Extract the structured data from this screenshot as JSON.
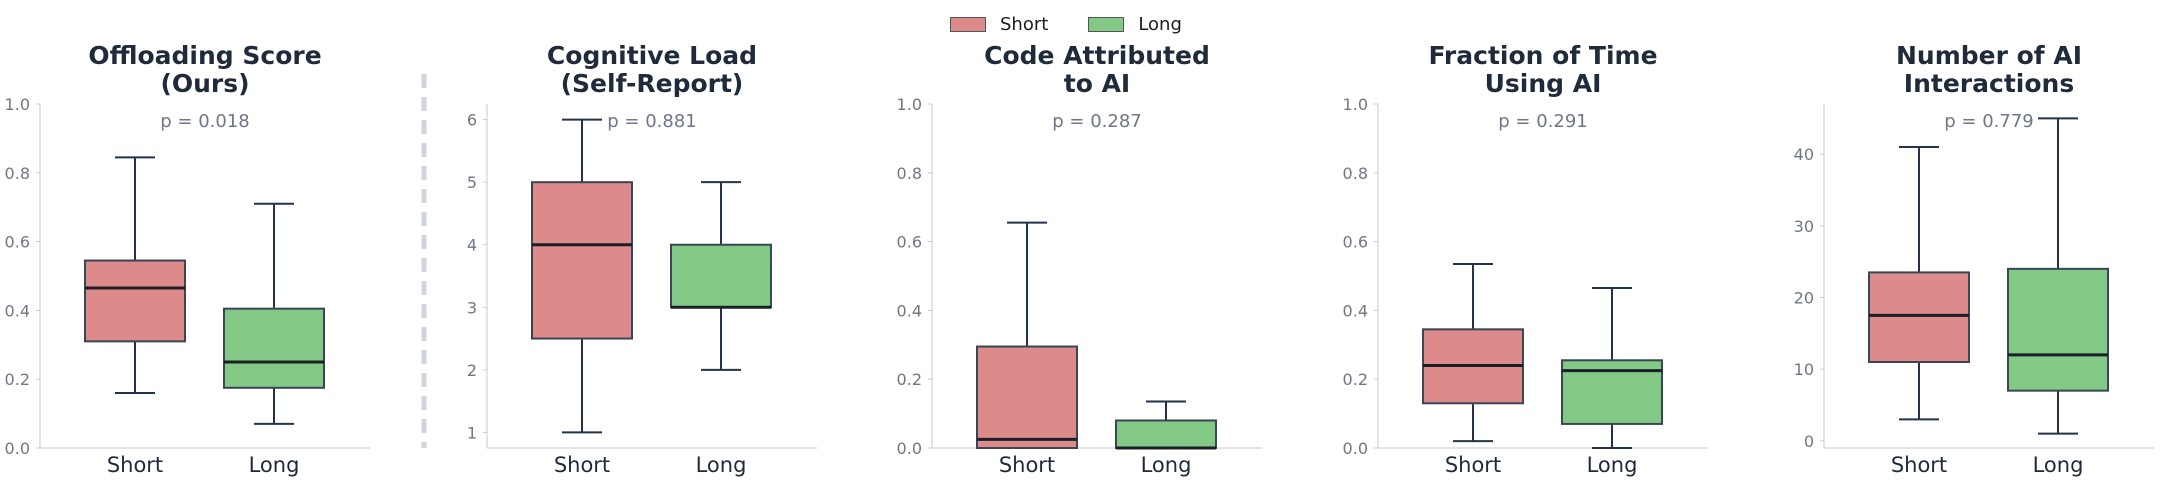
{
  "legend": {
    "items": [
      {
        "label": "Short",
        "color": "#dd8a8a"
      },
      {
        "label": "Long",
        "color": "#82c985"
      }
    ]
  },
  "divider_color": "#d0d4dc",
  "chart_data": [
    {
      "type": "box",
      "title": "Offloading Score\n(Ours)",
      "annotation": "p = 0.018",
      "categories": [
        "Short",
        "Long"
      ],
      "ylim": [
        0,
        1
      ],
      "yticks": [
        "0.0",
        "0.2",
        "0.4",
        "0.6",
        "0.8",
        "1.0"
      ],
      "ytick_values": [
        0,
        0.2,
        0.4,
        0.6,
        0.8,
        1.0
      ],
      "boxes": [
        {
          "name": "Short",
          "color": "#dd8a8a",
          "whisker_low": 0.16,
          "q1": 0.31,
          "median": 0.465,
          "q3": 0.545,
          "whisker_high": 0.845
        },
        {
          "name": "Long",
          "color": "#82c985",
          "whisker_low": 0.07,
          "q1": 0.175,
          "median": 0.25,
          "q3": 0.405,
          "whisker_high": 0.71
        }
      ]
    },
    {
      "type": "box",
      "title": "Cognitive Load\n(Self-Report)",
      "annotation": "p = 0.881",
      "categories": [
        "Short",
        "Long"
      ],
      "ylim": [
        0.75,
        6.25
      ],
      "yticks": [
        "1",
        "2",
        "3",
        "4",
        "5",
        "6"
      ],
      "ytick_values": [
        1,
        2,
        3,
        4,
        5,
        6
      ],
      "boxes": [
        {
          "name": "Short",
          "color": "#dd8a8a",
          "whisker_low": 1,
          "q1": 2.5,
          "median": 4,
          "q3": 5,
          "whisker_high": 6
        },
        {
          "name": "Long",
          "color": "#82c985",
          "whisker_low": 2,
          "q1": 3,
          "median": 3,
          "q3": 4,
          "whisker_high": 5
        }
      ]
    },
    {
      "type": "box",
      "title": "Code Attributed\nto AI",
      "annotation": "p = 0.287",
      "categories": [
        "Short",
        "Long"
      ],
      "ylim": [
        0,
        1
      ],
      "yticks": [
        "0.0",
        "0.2",
        "0.4",
        "0.6",
        "0.8",
        "1.0"
      ],
      "ytick_values": [
        0,
        0.2,
        0.4,
        0.6,
        0.8,
        1.0
      ],
      "boxes": [
        {
          "name": "Short",
          "color": "#dd8a8a",
          "whisker_low": 0,
          "q1": 0,
          "median": 0.025,
          "q3": 0.295,
          "whisker_high": 0.655
        },
        {
          "name": "Long",
          "color": "#82c985",
          "whisker_low": 0,
          "q1": 0,
          "median": 0,
          "q3": 0.08,
          "whisker_high": 0.135
        }
      ]
    },
    {
      "type": "box",
      "title": "Fraction of Time\nUsing AI",
      "annotation": "p = 0.291",
      "categories": [
        "Short",
        "Long"
      ],
      "ylim": [
        0,
        1
      ],
      "yticks": [
        "0.0",
        "0.2",
        "0.4",
        "0.6",
        "0.8",
        "1.0"
      ],
      "ytick_values": [
        0,
        0.2,
        0.4,
        0.6,
        0.8,
        1.0
      ],
      "boxes": [
        {
          "name": "Short",
          "color": "#dd8a8a",
          "whisker_low": 0.02,
          "q1": 0.13,
          "median": 0.24,
          "q3": 0.345,
          "whisker_high": 0.535
        },
        {
          "name": "Long",
          "color": "#82c985",
          "whisker_low": 0.0,
          "q1": 0.07,
          "median": 0.225,
          "q3": 0.255,
          "whisker_high": 0.465
        }
      ]
    },
    {
      "type": "box",
      "title": "Number of AI\nInteractions",
      "annotation": "p = 0.779",
      "categories": [
        "Short",
        "Long"
      ],
      "ylim": [
        -1,
        47
      ],
      "yticks": [
        "0",
        "10",
        "20",
        "30",
        "40"
      ],
      "ytick_values": [
        0,
        10,
        20,
        30,
        40
      ],
      "boxes": [
        {
          "name": "Short",
          "color": "#dd8a8a",
          "whisker_low": 3,
          "q1": 11,
          "median": 17.5,
          "q3": 23.5,
          "whisker_high": 41
        },
        {
          "name": "Long",
          "color": "#82c985",
          "whisker_low": 1,
          "q1": 7,
          "median": 12,
          "q3": 24,
          "whisker_high": 45
        }
      ]
    }
  ]
}
